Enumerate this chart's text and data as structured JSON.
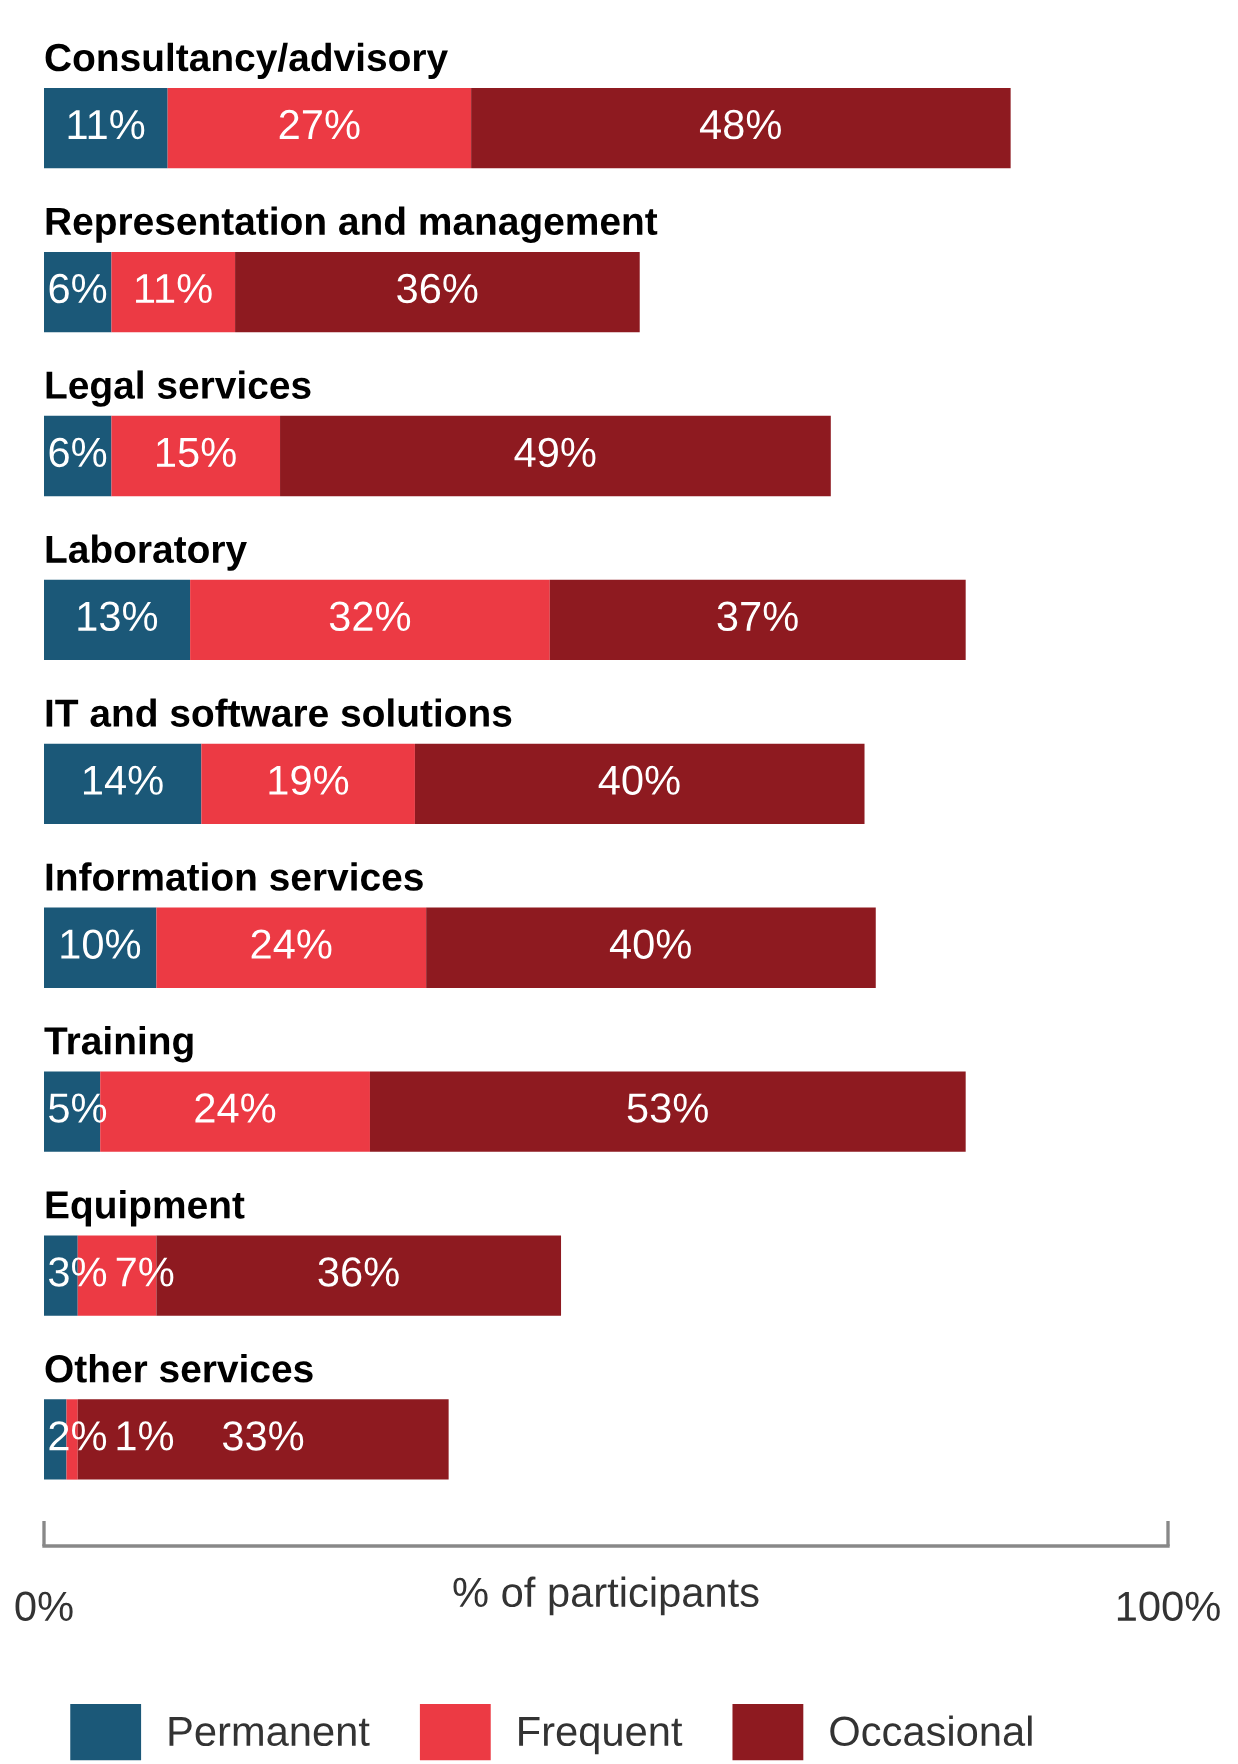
{
  "chart_data": {
    "type": "bar",
    "orientation": "horizontal",
    "stacked": true,
    "categories": [
      "Consultancy/advisory",
      "Representation and management",
      "Legal services",
      "Laboratory",
      "IT and software solutions",
      "Information services",
      "Training",
      "Equipment",
      "Other services"
    ],
    "series": [
      {
        "name": "Permanent",
        "color": "#1b5878",
        "values": [
          11,
          6,
          6,
          13,
          14,
          10,
          5,
          3,
          2
        ],
        "value_labels": [
          "11%",
          "6%",
          "6%",
          "13%",
          "14%",
          "10%",
          "5%",
          "3%",
          "2%"
        ]
      },
      {
        "name": "Frequent",
        "color": "#ec3a44",
        "values": [
          27,
          11,
          15,
          32,
          19,
          24,
          24,
          7,
          1
        ],
        "value_labels": [
          "27%",
          "11%",
          "15%",
          "32%",
          "19%",
          "24%",
          "24%",
          "7%",
          "1%"
        ]
      },
      {
        "name": "Occasional",
        "color": "#8e1a20",
        "values": [
          48,
          36,
          49,
          37,
          40,
          40,
          53,
          36,
          33
        ],
        "value_labels": [
          "48%",
          "36%",
          "49%",
          "37%",
          "40%",
          "40%",
          "53%",
          "36%",
          "33%"
        ]
      }
    ],
    "xlabel": "% of participants",
    "xlim": [
      0,
      100
    ],
    "xticks": [
      {
        "value": 0,
        "label": "0%"
      },
      {
        "value": 100,
        "label": "100%"
      }
    ],
    "grid": false,
    "legend": "bottom"
  }
}
